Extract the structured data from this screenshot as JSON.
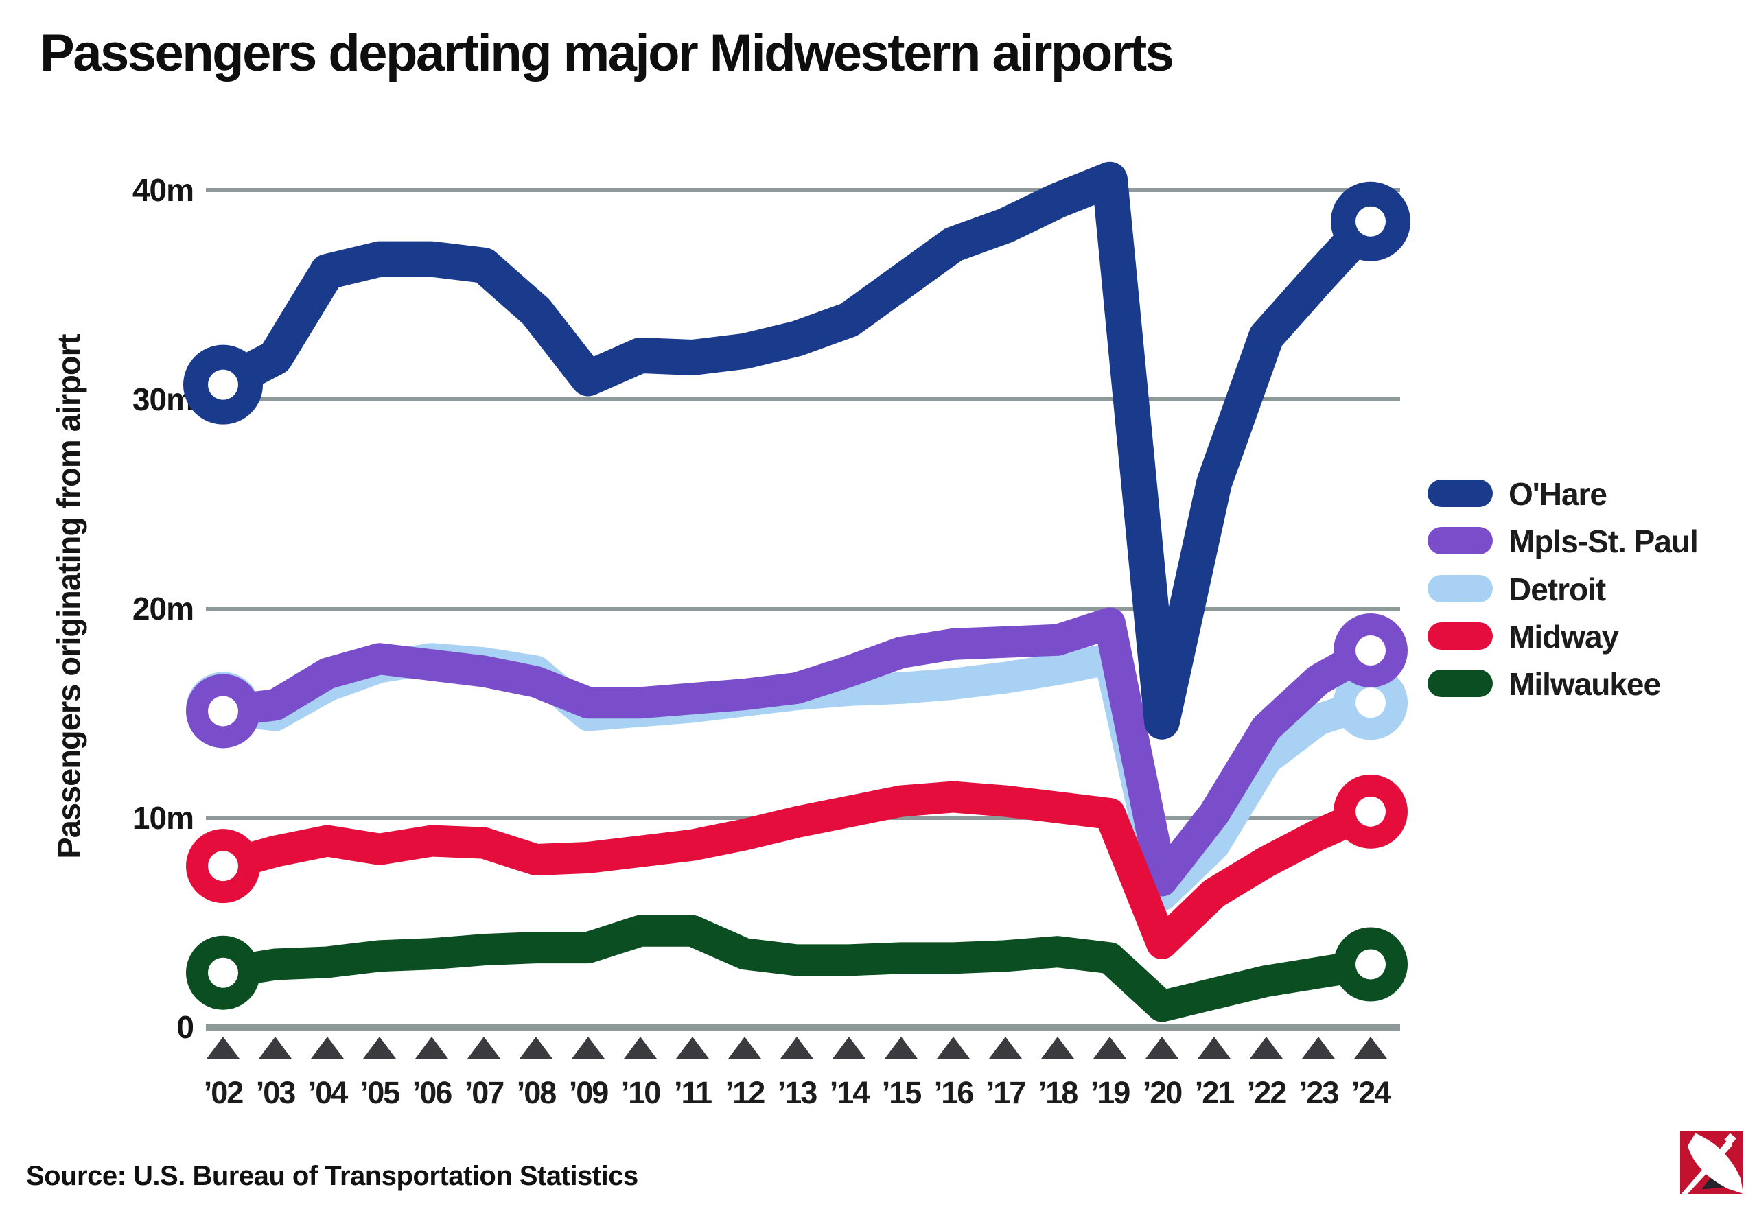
{
  "title": "Passengers departing major Midwestern airports",
  "y_axis_title": "Passengers originating from airport",
  "source": "Source: U.S. Bureau of Transportation Statistics",
  "colors": {
    "ohare": "#1a3a8c",
    "mpls_st_paul": "#7a4ecb",
    "detroit": "#a8d1f4",
    "midway": "#e50d3c",
    "milwaukee": "#0a4e22",
    "gridline": "#8e9a9a",
    "axis_line": "#8e9a9a",
    "tick_triangle": "#3a3a3f",
    "text": "#151515",
    "logo_red": "#c2122f",
    "logo_dark": "#22232b"
  },
  "chart_data": {
    "type": "line",
    "title": "Passengers departing major Midwestern airports",
    "xlabel": "",
    "ylabel": "Passengers originating from airport",
    "unit": "millions of passengers per year",
    "ylim": [
      0,
      43
    ],
    "grid": "horizontal gridlines at 0, 10m, 20m, 30m, 40m",
    "legend_position": "right",
    "marker_note": "open ring markers on first (2002) and last (2024) points; triangle ticks under x axis",
    "x": [
      2002,
      2003,
      2004,
      2005,
      2006,
      2007,
      2008,
      2009,
      2010,
      2011,
      2012,
      2013,
      2014,
      2015,
      2016,
      2017,
      2018,
      2019,
      2020,
      2021,
      2022,
      2023,
      2024
    ],
    "x_tick_labels": [
      "’02",
      "’03",
      "’04",
      "’05",
      "’06",
      "’07",
      "’08",
      "’09",
      "’10",
      "’11",
      "’12",
      "’13",
      "’14",
      "’15",
      "’16",
      "’17",
      "’18",
      "’19",
      "’20",
      "’21",
      "’22",
      "’23",
      "’24"
    ],
    "y_ticks": [
      {
        "value": 0,
        "label": "0"
      },
      {
        "value": 10,
        "label": "10m"
      },
      {
        "value": 20,
        "label": "20m"
      },
      {
        "value": 30,
        "label": "30m"
      },
      {
        "value": 40,
        "label": "40m"
      }
    ],
    "series": [
      {
        "name": "O'Hare",
        "color_key": "ohare",
        "color": "#1a3a8c",
        "values": [
          30.7,
          32.0,
          36.1,
          36.7,
          36.7,
          36.4,
          34.2,
          31.0,
          32.1,
          32.0,
          32.3,
          32.9,
          33.8,
          35.6,
          37.4,
          38.3,
          39.5,
          40.5,
          14.6,
          26.0,
          33.0,
          35.8,
          38.5
        ]
      },
      {
        "name": "Mpls-St. Paul",
        "color_key": "mpls_st_paul",
        "color": "#7a4ecb",
        "values": [
          15.1,
          15.4,
          16.9,
          17.6,
          17.3,
          17.0,
          16.5,
          15.5,
          15.5,
          15.7,
          15.9,
          16.2,
          17.0,
          17.9,
          18.3,
          18.4,
          18.5,
          19.3,
          7.0,
          10.2,
          14.3,
          16.6,
          18.0
        ]
      },
      {
        "name": "Detroit",
        "color_key": "detroit",
        "color": "#a8d1f4",
        "values": [
          15.2,
          14.9,
          16.3,
          17.2,
          17.6,
          17.4,
          17.0,
          14.9,
          15.1,
          15.3,
          15.6,
          15.9,
          16.1,
          16.2,
          16.4,
          16.7,
          17.1,
          17.6,
          6.3,
          8.7,
          12.8,
          14.7,
          15.5
        ]
      },
      {
        "name": "Midway",
        "color_key": "midway",
        "color": "#e50d3c",
        "values": [
          7.7,
          8.4,
          8.9,
          8.5,
          8.9,
          8.8,
          8.0,
          8.1,
          8.4,
          8.7,
          9.2,
          9.8,
          10.3,
          10.8,
          11.0,
          10.8,
          10.5,
          10.2,
          4.0,
          6.4,
          7.9,
          9.2,
          10.3
        ]
      },
      {
        "name": "Milwaukee",
        "color_key": "milwaukee",
        "color": "#0a4e22",
        "values": [
          2.6,
          3.0,
          3.1,
          3.4,
          3.5,
          3.7,
          3.8,
          3.8,
          4.6,
          4.6,
          3.5,
          3.2,
          3.2,
          3.3,
          3.3,
          3.4,
          3.6,
          3.3,
          1.0,
          1.6,
          2.2,
          2.6,
          3.0
        ]
      }
    ]
  }
}
